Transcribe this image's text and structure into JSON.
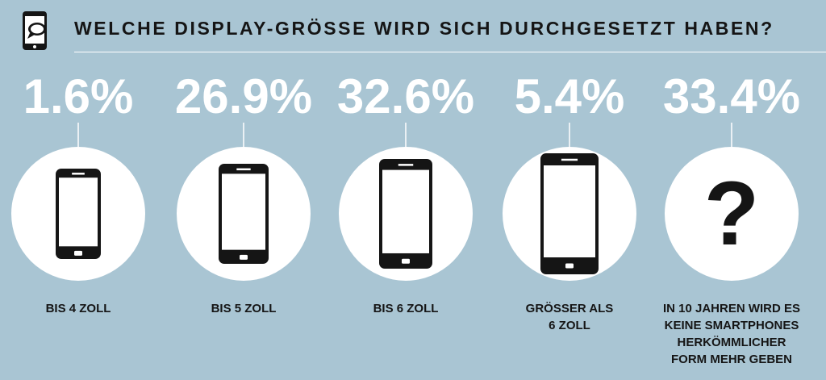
{
  "title": "WELCHE DISPLAY-GRÖSSE WIRD SICH DURCHGESETZT HABEN?",
  "header_icon": "phone-chat-icon",
  "colors": {
    "background": "#a9c5d3",
    "circle": "#ffffff",
    "text": "#151515",
    "percent": "#ffffff",
    "phone": "#151515"
  },
  "chart_data": {
    "type": "bar",
    "unit": "%",
    "categories": [
      "BIS 4 ZOLL",
      "BIS 5 ZOLL",
      "BIS 6 ZOLL",
      "GRÖSSER ALS 6 ZOLL",
      "IN 10 JAHREN WIRD ES KEINE SMARTPHONES HERKÖMMLICHER FORM MEHR GEBEN"
    ],
    "category_lines": [
      [
        "BIS 4 ZOLL"
      ],
      [
        "BIS 5 ZOLL"
      ],
      [
        "BIS 6 ZOLL"
      ],
      [
        "GRÖSSER ALS",
        "6 ZOLL"
      ],
      [
        "IN 10 JAHREN WIRD ES",
        "KEINE SMARTPHONES",
        "HERKÖMMLICHER",
        "FORM MEHR GEBEN"
      ]
    ],
    "values": [
      1.6,
      26.9,
      32.6,
      5.4,
      33.4
    ],
    "value_labels": [
      "1.6%",
      "26.9%",
      "32.6%",
      "5.4%",
      "33.4%"
    ],
    "icons": [
      "phone-small-icon",
      "phone-medium-icon",
      "phone-large-icon",
      "phone-xlarge-icon",
      "question-mark-icon"
    ],
    "question_glyph": "?"
  }
}
